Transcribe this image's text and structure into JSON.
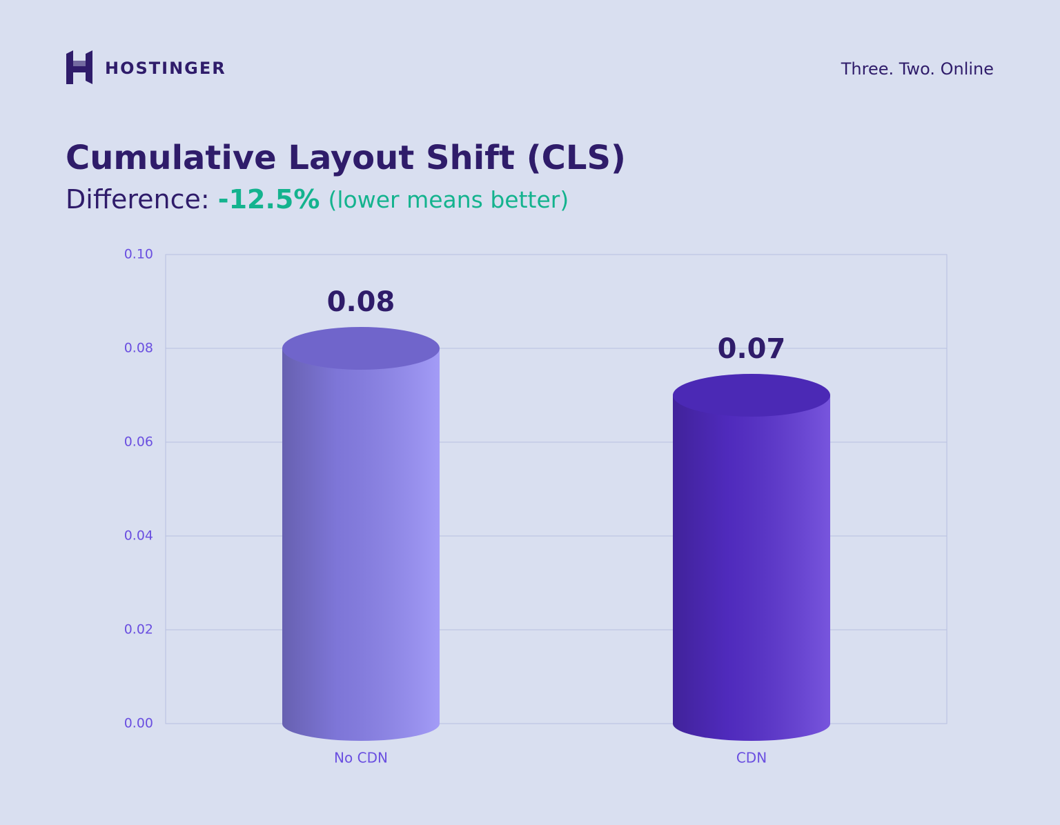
{
  "brand": "HOSTINGER",
  "tagline": "Three. Two. Online",
  "chart_data": {
    "type": "bar",
    "title": "Cumulative Layout Shift (CLS)",
    "subtitle": {
      "label": "Difference:",
      "difference": "-12.5%",
      "note": "(lower means better)"
    },
    "categories": [
      "No CDN",
      "CDN"
    ],
    "values": [
      0.08,
      0.07
    ],
    "colors": [
      "#8f86f5",
      "#5a30d6"
    ],
    "ylim": [
      0,
      0.1
    ],
    "yticks": [
      {
        "value": 0,
        "label": "0.00"
      },
      0.02,
      0.04,
      0.06,
      0.08,
      {
        "value": 0.1,
        "label": "0.10"
      }
    ],
    "grid": true
  }
}
